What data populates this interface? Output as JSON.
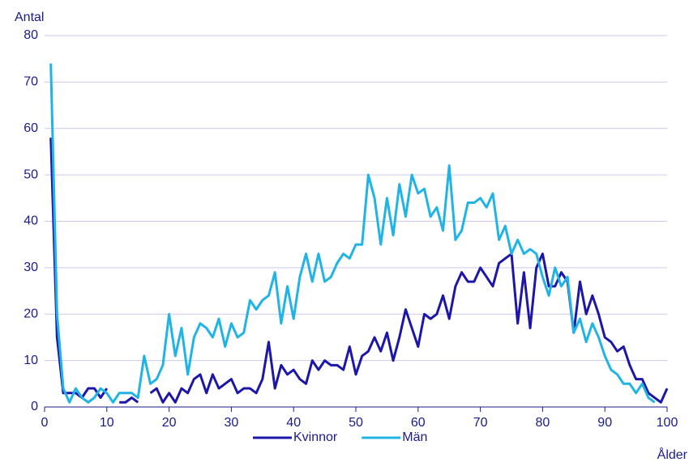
{
  "chart_data": {
    "type": "line",
    "y_label": "Antal",
    "x_label": "Ålder",
    "x": [
      1,
      2,
      3,
      4,
      5,
      6,
      7,
      8,
      9,
      10,
      11,
      12,
      13,
      14,
      15,
      16,
      17,
      18,
      19,
      20,
      21,
      22,
      23,
      24,
      25,
      26,
      27,
      28,
      29,
      30,
      31,
      32,
      33,
      34,
      35,
      36,
      37,
      38,
      39,
      40,
      41,
      42,
      43,
      44,
      45,
      46,
      47,
      48,
      49,
      50,
      51,
      52,
      53,
      54,
      55,
      56,
      57,
      58,
      59,
      60,
      61,
      62,
      63,
      64,
      65,
      66,
      67,
      68,
      69,
      70,
      71,
      72,
      73,
      74,
      75,
      76,
      77,
      78,
      79,
      80,
      81,
      82,
      83,
      84,
      85,
      86,
      87,
      88,
      89,
      90,
      91,
      92,
      93,
      94,
      95,
      96,
      97,
      98,
      99,
      100
    ],
    "series": [
      {
        "name": "Kvinnor",
        "color": "#1c17a8",
        "values": [
          58,
          15,
          3,
          3,
          3,
          2,
          4,
          4,
          2,
          4,
          null,
          1,
          1,
          2,
          1,
          null,
          3,
          4,
          1,
          3,
          1,
          4,
          3,
          6,
          7,
          3,
          7,
          4,
          5,
          6,
          3,
          4,
          4,
          3,
          6,
          14,
          4,
          9,
          7,
          8,
          6,
          5,
          10,
          8,
          10,
          9,
          9,
          8,
          13,
          7,
          11,
          12,
          15,
          12,
          16,
          10,
          15,
          21,
          17,
          13,
          20,
          19,
          20,
          24,
          19,
          26,
          29,
          27,
          27,
          30,
          28,
          26,
          31,
          32,
          33,
          18,
          29,
          17,
          30,
          33,
          26,
          26,
          29,
          27,
          16,
          27,
          20,
          24,
          20,
          15,
          14,
          12,
          13,
          9,
          6,
          6,
          3,
          2,
          1,
          4
        ]
      },
      {
        "name": "Män",
        "color": "#20b4e6",
        "values": [
          74,
          20,
          4,
          1,
          4,
          2,
          1,
          2,
          4,
          3,
          1,
          3,
          3,
          3,
          2,
          11,
          5,
          6,
          9,
          20,
          11,
          17,
          7,
          15,
          18,
          17,
          15,
          19,
          13,
          18,
          15,
          16,
          23,
          21,
          23,
          24,
          29,
          18,
          26,
          19,
          28,
          33,
          27,
          33,
          27,
          28,
          31,
          33,
          32,
          35,
          35,
          50,
          45,
          35,
          45,
          37,
          48,
          41,
          50,
          46,
          47,
          41,
          43,
          38,
          52,
          36,
          38,
          44,
          44,
          45,
          43,
          46,
          36,
          39,
          33,
          36,
          33,
          34,
          33,
          28,
          24,
          30,
          26,
          28,
          16,
          19,
          14,
          18,
          15,
          11,
          8,
          7,
          5,
          5,
          3,
          5,
          2,
          1,
          null,
          null
        ]
      }
    ],
    "xlim": [
      0,
      100
    ],
    "xticks": [
      0,
      10,
      20,
      30,
      40,
      50,
      60,
      70,
      80,
      90,
      100
    ],
    "ylim": [
      0,
      80
    ],
    "yticks": [
      0,
      10,
      20,
      30,
      40,
      50,
      60,
      70,
      80
    ],
    "grid": true,
    "legend": "bottom"
  }
}
